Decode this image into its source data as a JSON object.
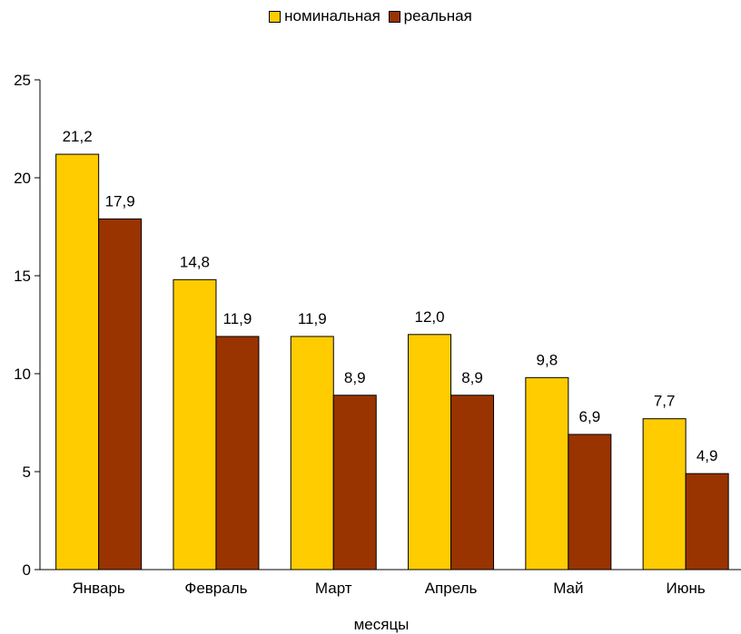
{
  "chart_data": {
    "type": "bar",
    "categories": [
      "Январь",
      "Февраль",
      "Март",
      "Апрель",
      "Май",
      "Июнь"
    ],
    "series": [
      {
        "name": "номинальная",
        "values": [
          21.2,
          14.8,
          11.9,
          12.0,
          9.8,
          7.7
        ],
        "labels": [
          "21,2",
          "14,8",
          "11,9",
          "12,0",
          "9,8",
          "7,7"
        ],
        "color": "#FFCC00"
      },
      {
        "name": "реальная",
        "values": [
          17.9,
          11.9,
          8.9,
          8.9,
          6.9,
          4.9
        ],
        "labels": [
          "17,9",
          "11,9",
          "8,9",
          "8,9",
          "6,9",
          "4,9"
        ],
        "color": "#993300"
      }
    ],
    "title": "",
    "xlabel": "месяцы",
    "ylabel": "",
    "ylim": [
      0,
      25
    ],
    "yticks": [
      0,
      5,
      10,
      15,
      20,
      25
    ],
    "grid": false,
    "legend_position": "top-center"
  }
}
